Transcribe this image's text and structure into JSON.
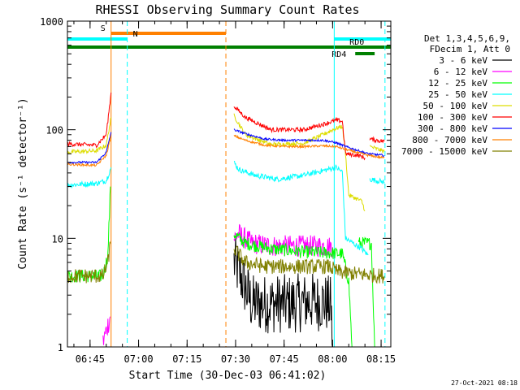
{
  "chart_data": {
    "type": "line",
    "title": "RHESSI Observing Summary Count Rates",
    "xlabel": "Start Time (30-Dec-03 06:41:02)",
    "ylabel": "Count Rate (s⁻¹ detector⁻¹)",
    "yscale": "log",
    "ylim": [
      1,
      1000
    ],
    "xlim_min": [
      -3,
      97
    ],
    "x_unit": "minutes after 06:41:02",
    "x_ticks": [
      {
        "m": 4.0,
        "label": "06:45"
      },
      {
        "m": 19.0,
        "label": "07:00"
      },
      {
        "m": 34.0,
        "label": "07:15"
      },
      {
        "m": 49.0,
        "label": "07:30"
      },
      {
        "m": 64.0,
        "label": "07:45"
      },
      {
        "m": 79.0,
        "label": "08:00"
      },
      {
        "m": 94.0,
        "label": "08:15"
      }
    ],
    "y_ticks": [
      {
        "v": 1,
        "label": "1"
      },
      {
        "v": 10,
        "label": "10"
      },
      {
        "v": 100,
        "label": "100"
      },
      {
        "v": 1000,
        "label": "1000"
      }
    ],
    "legend": {
      "header": [
        "Det 1,3,4,5,6,9,",
        "FDecim 1, Att 0"
      ],
      "placement": "right"
    },
    "series": [
      {
        "name": "3 - 6 keV",
        "color": "#000000",
        "noise": 0.55,
        "segments": [
          [
            [
              48.5,
              6
            ],
            [
              50,
              5
            ],
            [
              52,
              3.5
            ],
            [
              54,
              2.5
            ],
            [
              60,
              2.5
            ],
            [
              66,
              2.5
            ],
            [
              72,
              2.6
            ],
            [
              76,
              2.6
            ],
            [
              78.5,
              2.4
            ],
            [
              79,
              1
            ]
          ]
        ]
      },
      {
        "name": "6 - 12 keV",
        "color": "#ff00ff",
        "noise": 0.2,
        "segments": [
          [
            [
              8,
              1.1
            ],
            [
              10.2,
              1.9
            ]
          ],
          [
            [
              48.5,
              10
            ],
            [
              50,
              11
            ],
            [
              54,
              9
            ],
            [
              60,
              8.5
            ],
            [
              68,
              8.5
            ],
            [
              76,
              8.5
            ],
            [
              79,
              8.3
            ]
          ]
        ]
      },
      {
        "name": "12 - 25 keV",
        "color": "#00ff00",
        "noise": 0.12,
        "segments": [
          [
            [
              -3,
              4.5
            ],
            [
              8,
              4.5
            ],
            [
              9.5,
              7
            ],
            [
              10.3,
              30
            ]
          ],
          [
            [
              48.5,
              11
            ],
            [
              52,
              9
            ],
            [
              60,
              8
            ],
            [
              70,
              7.5
            ],
            [
              79,
              7.3
            ],
            [
              82,
              7.2
            ],
            [
              84,
              4
            ],
            [
              85,
              1
            ]
          ],
          [
            [
              87,
              9
            ],
            [
              91,
              9
            ],
            [
              92,
              1
            ]
          ]
        ]
      },
      {
        "name": "25 - 50 keV",
        "color": "#00ffff",
        "noise": 0.05,
        "segments": [
          [
            [
              -3,
              31
            ],
            [
              6,
              32
            ],
            [
              9,
              34
            ],
            [
              10.5,
              45
            ]
          ],
          [
            [
              48.5,
              50
            ],
            [
              50,
              43
            ],
            [
              55,
              38
            ],
            [
              62,
              35
            ],
            [
              70,
              38
            ],
            [
              76,
              42
            ],
            [
              80,
              45
            ],
            [
              82,
              41
            ],
            [
              83,
              10
            ],
            [
              88,
              8
            ],
            [
              90,
              7
            ]
          ],
          [
            [
              90.5,
              35
            ],
            [
              95,
              33
            ]
          ]
        ]
      },
      {
        "name": "50 - 100 keV",
        "color": "#dddd00",
        "noise": 0.04,
        "segments": [
          [
            [
              -3,
              62
            ],
            [
              6,
              64
            ],
            [
              9,
              72
            ],
            [
              10.5,
              130
            ]
          ],
          [
            [
              48.5,
              135
            ],
            [
              52,
              90
            ],
            [
              60,
              73
            ],
            [
              70,
              75
            ],
            [
              76,
              90
            ],
            [
              79,
              100
            ],
            [
              82,
              108
            ],
            [
              83,
              60
            ],
            [
              84,
              25
            ],
            [
              88,
              22
            ],
            [
              89,
              18
            ]
          ],
          [
            [
              90.5,
              70
            ],
            [
              95,
              63
            ]
          ]
        ]
      },
      {
        "name": "100 - 300 keV",
        "color": "#ff0000",
        "noise": 0.04,
        "segments": [
          [
            [
              -3,
              74
            ],
            [
              6,
              72
            ],
            [
              9,
              90
            ],
            [
              10.5,
              220
            ]
          ],
          [
            [
              48.5,
              165
            ],
            [
              52,
              130
            ],
            [
              60,
              100
            ],
            [
              70,
              100
            ],
            [
              76,
              112
            ],
            [
              80,
              122
            ],
            [
              82,
              120
            ],
            [
              83,
              60
            ],
            [
              87,
              58
            ],
            [
              89,
              55
            ]
          ],
          [
            [
              90.5,
              82
            ],
            [
              95,
              78
            ]
          ]
        ]
      },
      {
        "name": "300 - 800 keV",
        "color": "#0000ff",
        "noise": 0.02,
        "segments": [
          [
            [
              -3,
              50
            ],
            [
              6,
              50
            ],
            [
              9,
              62
            ],
            [
              10.5,
              95
            ]
          ],
          [
            [
              48.5,
              100
            ],
            [
              52,
              92
            ],
            [
              58,
              82
            ],
            [
              64,
              80
            ],
            [
              70,
              80
            ],
            [
              76,
              80
            ],
            [
              80,
              76
            ],
            [
              83,
              70
            ],
            [
              90,
              60
            ],
            [
              95,
              58
            ]
          ]
        ]
      },
      {
        "name": "800 - 7000 keV",
        "color": "#ff8000",
        "noise": 0.02,
        "segments": [
          [
            [
              -3,
              48
            ],
            [
              6,
              47
            ],
            [
              9,
              58
            ],
            [
              10.5,
              88
            ]
          ],
          [
            [
              48.5,
              88
            ],
            [
              52,
              80
            ],
            [
              58,
              72
            ],
            [
              64,
              70
            ],
            [
              70,
              70
            ],
            [
              76,
              71
            ],
            [
              80,
              70
            ],
            [
              83,
              66
            ],
            [
              90,
              58
            ],
            [
              95,
              55
            ]
          ]
        ]
      },
      {
        "name": "7000 - 15000 keV",
        "color": "#808000",
        "noise": 0.14,
        "segments": [
          [
            [
              -3,
              4.5
            ],
            [
              8,
              4.5
            ],
            [
              9.5,
              6
            ],
            [
              10.3,
              9
            ]
          ],
          [
            [
              48.5,
              8
            ],
            [
              52,
              6
            ],
            [
              58,
              5.5
            ],
            [
              66,
              5.5
            ],
            [
              72,
              5.5
            ],
            [
              78,
              5.5
            ],
            [
              80,
              5
            ],
            [
              83,
              4.8
            ],
            [
              90,
              4.6
            ],
            [
              95,
              4.5
            ]
          ]
        ]
      }
    ],
    "vlines": [
      {
        "m": 10.5,
        "color": "#ff8000",
        "dash": false
      },
      {
        "m": 15.5,
        "color": "#00ffff",
        "dash": true
      },
      {
        "m": 46.0,
        "color": "#ff8000",
        "dash": true
      },
      {
        "m": 79.5,
        "color": "#00ffff",
        "dash": false
      },
      {
        "m": 95.2,
        "color": "#00ffff",
        "dash": true
      }
    ],
    "flag_bars": [
      {
        "label": "S",
        "color": "#ff8000",
        "start": 10.5,
        "end": 46.0,
        "level": 1,
        "label_at": 8
      },
      {
        "label": "N",
        "color": "#00ffff",
        "start": -3,
        "end": 15.5,
        "level": 2,
        "label_at": 18
      },
      {
        "label": "N",
        "color": "#00ffff",
        "start": 79.5,
        "end": 97,
        "level": 2,
        "label_at": null
      },
      {
        "label": "",
        "color": "#008000",
        "start": -3,
        "end": 97,
        "level": 3,
        "label_at": null
      },
      {
        "label": "RD0",
        "color": "#008000",
        "start": 84,
        "end": 92,
        "level": 4,
        "label_at": 86.5
      },
      {
        "label": "RD4",
        "color": "#008000",
        "start": 86,
        "end": 92,
        "level": 5,
        "label_at": 81
      }
    ]
  },
  "footer": {
    "timestamp": "27-Oct-2021 08:18"
  }
}
